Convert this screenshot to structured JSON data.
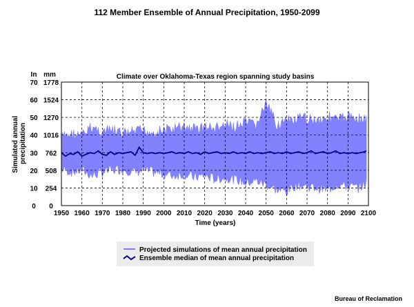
{
  "title": "112 Member Ensemble of Annual Precipitation, 1950-2099",
  "credit": "Bureau of Reclamation",
  "colors": {
    "ensemble": "#7b7bff",
    "median": "#00008b",
    "legend_bg": "#ececec"
  },
  "chart_data": {
    "type": "line",
    "title": "Climate over Oklahoma-Texas region spanning study basins",
    "xlabel": "Time (years)",
    "ylabel": "Simulated annual precipitation",
    "y_unit_left": "In",
    "y_unit_right": "mm",
    "xlim": [
      1950,
      2100
    ],
    "ylim": [
      0,
      70
    ],
    "x_ticks": [
      1950,
      1960,
      1970,
      1980,
      1990,
      2000,
      2010,
      2020,
      2030,
      2040,
      2050,
      2060,
      2070,
      2080,
      2090,
      2100
    ],
    "y_ticks_in": [
      0,
      10,
      20,
      30,
      40,
      50,
      60,
      70
    ],
    "y_ticks_mm": [
      "0",
      "254",
      "508",
      "762",
      "1016",
      "1270",
      "1524",
      "1778"
    ],
    "grid": true,
    "legend_position": "bottom",
    "series": [
      {
        "name": "Projected simulations of mean annual precipitation",
        "kind": "envelope",
        "x": [
          1950,
          1955,
          1960,
          1965,
          1970,
          1975,
          1980,
          1985,
          1990,
          1995,
          2000,
          2005,
          2010,
          2015,
          2020,
          2025,
          2030,
          2035,
          2040,
          2045,
          2050,
          2055,
          2060,
          2065,
          2070,
          2075,
          2080,
          2085,
          2090,
          2095,
          2099
        ],
        "upper": [
          42,
          44,
          43,
          48,
          45,
          46,
          44,
          45,
          46,
          45,
          46,
          47,
          48,
          47,
          48,
          47,
          49,
          48,
          50,
          49,
          61,
          50,
          51,
          52,
          53,
          52,
          54,
          52,
          54,
          53,
          52
        ],
        "lower": [
          18,
          16,
          17,
          14,
          16,
          17,
          18,
          16,
          17,
          16,
          15,
          14,
          15,
          13,
          14,
          12,
          13,
          12,
          10,
          11,
          9,
          6,
          5,
          9,
          8,
          7,
          6,
          9,
          8,
          7,
          10
        ]
      },
      {
        "name": "Ensemble median of mean annual precipitation",
        "kind": "line",
        "x": [
          1950,
          1952,
          1954,
          1956,
          1958,
          1960,
          1962,
          1964,
          1966,
          1968,
          1970,
          1972,
          1974,
          1976,
          1978,
          1980,
          1982,
          1984,
          1986,
          1988,
          1990,
          1992,
          1994,
          1996,
          1998,
          2000,
          2002,
          2004,
          2006,
          2008,
          2010,
          2012,
          2014,
          2016,
          2018,
          2020,
          2022,
          2024,
          2026,
          2028,
          2030,
          2032,
          2034,
          2036,
          2038,
          2040,
          2042,
          2044,
          2046,
          2048,
          2050,
          2052,
          2054,
          2056,
          2058,
          2060,
          2062,
          2064,
          2066,
          2068,
          2070,
          2072,
          2074,
          2076,
          2078,
          2080,
          2082,
          2084,
          2086,
          2088,
          2090,
          2092,
          2094,
          2096,
          2098,
          2099
        ],
        "values": [
          30,
          28,
          29.5,
          29,
          30.5,
          28,
          29,
          30,
          29.5,
          31,
          29,
          28.5,
          30.5,
          29,
          30,
          29.5,
          30,
          30.5,
          28.5,
          33,
          30,
          29.5,
          30,
          29.5,
          30,
          29.5,
          30,
          30.5,
          29.5,
          30,
          29.5,
          30.5,
          29.5,
          30,
          29,
          30.5,
          29.5,
          30,
          30.5,
          29.5,
          30,
          29.5,
          30.5,
          29.5,
          30,
          29.5,
          30.5,
          29.5,
          30,
          29.5,
          30,
          30.5,
          29.5,
          30,
          29.5,
          30.5,
          29.5,
          30,
          30.5,
          29.5,
          30,
          31,
          29.5,
          30,
          30.5,
          29.5,
          30,
          31,
          29.5,
          30,
          29.5,
          30,
          29.5,
          30,
          30.5,
          31
        ]
      }
    ]
  }
}
